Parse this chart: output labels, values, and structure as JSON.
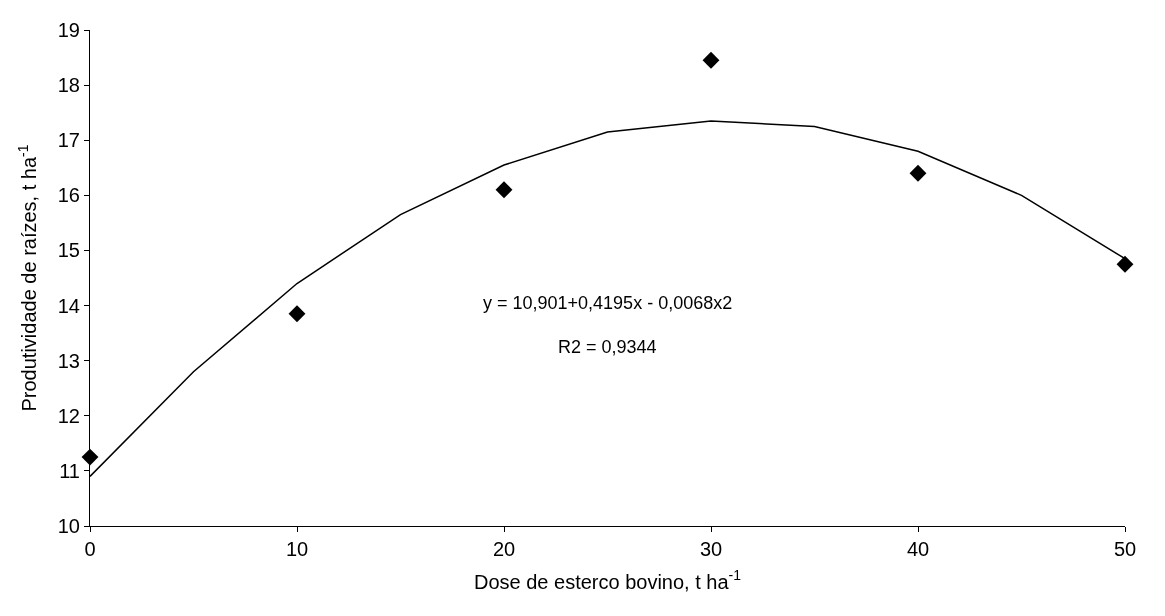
{
  "chart_data": {
    "type": "scatter",
    "xlabel": "Dose de esterco bovino, t ha$^{-1}$",
    "ylabel": "Produtividade de raízes, t ha$^{-1}$",
    "x": [
      0,
      10,
      20,
      30,
      40,
      50
    ],
    "series": [
      {
        "type": "line",
        "color": "#000000",
        "marker": "none",
        "line_style": "solid",
        "x": [
          0,
          5,
          10,
          15,
          20,
          25,
          30,
          35,
          40,
          45,
          50
        ],
        "values": [
          10.9,
          12.8,
          14.4,
          15.65,
          16.55,
          17.15,
          17.35,
          17.25,
          16.8,
          16.0,
          14.85
        ]
      },
      {
        "color": "#000000",
        "marker": "diamond",
        "values": [
          11.25,
          13.85,
          16.1,
          18.45,
          16.4,
          14.75
        ]
      }
    ],
    "annotations": [
      "y = 10,901+0,4195x - 0,0068x2",
      "R2 = 0,9344"
    ],
    "xlim": [
      0,
      50
    ],
    "xticks": [
      0,
      10,
      20,
      30,
      40,
      50
    ],
    "ylim": [
      10,
      19
    ],
    "yticks": [
      10,
      11,
      12,
      13,
      14,
      15,
      16,
      17,
      18,
      19
    ],
    "legend": false
  }
}
